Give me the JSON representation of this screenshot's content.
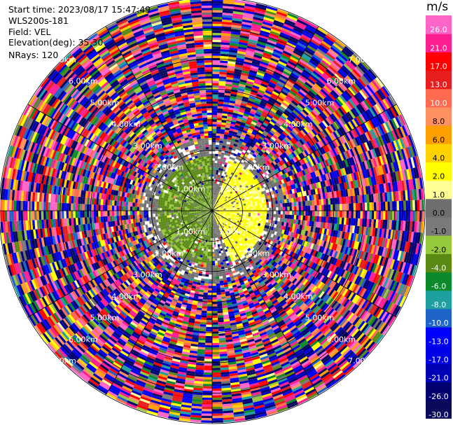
{
  "header": {
    "start_time": "Start time: 2023/08/17 15:47:49",
    "instrument": "WLS200s-181",
    "field": "Field: VEL",
    "elevation": "Elevation(deg): 35.30",
    "nrays": "NRays: 120"
  },
  "colorbar": {
    "unit": "m/s",
    "bounds": [
      -30.0,
      -26.0,
      -21.0,
      -17.0,
      -13.0,
      -10.0,
      -8.0,
      -6.0,
      -4.0,
      -2.0,
      -1.0,
      0.0,
      1.0,
      2.0,
      4.0,
      6.0,
      8.0,
      10.0,
      13.0,
      17.0,
      21.0,
      26.0,
      30.0
    ],
    "tick_labels": [
      "-30.0",
      "-26.0",
      "-21.0",
      "-17.0",
      "-13.0",
      "-10.0",
      "-8.0",
      "-6.0",
      "-4.0",
      "-2.0",
      "-1.0",
      "0.0",
      "1.0",
      "2.0",
      "4.0",
      "6.0",
      "8.0",
      "10.0",
      "13.0",
      "17.0",
      "21.0",
      "26.0"
    ],
    "colors": [
      "#0a0a5a",
      "#000070",
      "#0000b4",
      "#0000e6",
      "#0000ff",
      "#1e64c8",
      "#1ea0a0",
      "#0a8a2a",
      "#5a8a14",
      "#96c83c",
      "#7a7a7a",
      "#6e6e6e",
      "#ffff96",
      "#ffff00",
      "#ffd200",
      "#ffa000",
      "#ff9060",
      "#ff6a50",
      "#e61e1e",
      "#ff0000",
      "#ff1e90",
      "#ff64c8"
    ]
  },
  "chart_data": {
    "type": "heatmap",
    "projection": "polar PPI",
    "field": "VEL",
    "units": "m/s",
    "nrays": 120,
    "range_rings_km": [
      1.0,
      2.0,
      3.0,
      4.0,
      5.0,
      6.0,
      7.0
    ],
    "ring_labels": [
      "1.00km",
      "2.00km",
      "3.00km",
      "4.00km",
      "5.00km",
      "6.00km",
      "7.00km"
    ],
    "azimuth_lines_deg": [
      0,
      30,
      60,
      90,
      120,
      150,
      180,
      210,
      240,
      270,
      300,
      330
    ],
    "max_range_km": 7.0,
    "regions": [
      {
        "description": "toward-sensor velocities (green/olive)",
        "azimuth_deg": [
          180,
          360
        ],
        "range_km": [
          0.0,
          1.8
        ],
        "value_range": [
          -4.0,
          -1.0
        ]
      },
      {
        "description": "away-from-sensor velocities (yellow)",
        "azimuth_deg": [
          20,
          160
        ],
        "range_km": [
          0.0,
          1.8
        ],
        "value_range": [
          1.0,
          4.0
        ]
      },
      {
        "description": "near-zero velocities (grey)",
        "azimuth_deg": [
          0,
          360
        ],
        "range_km": [
          0.8,
          2.4
        ],
        "value_range": [
          -1.0,
          1.0
        ]
      },
      {
        "description": "noise, random values",
        "azimuth_deg": [
          0,
          360
        ],
        "range_km": [
          2.2,
          7.0
        ],
        "value_range": [
          -30.0,
          30.0
        ]
      }
    ]
  }
}
